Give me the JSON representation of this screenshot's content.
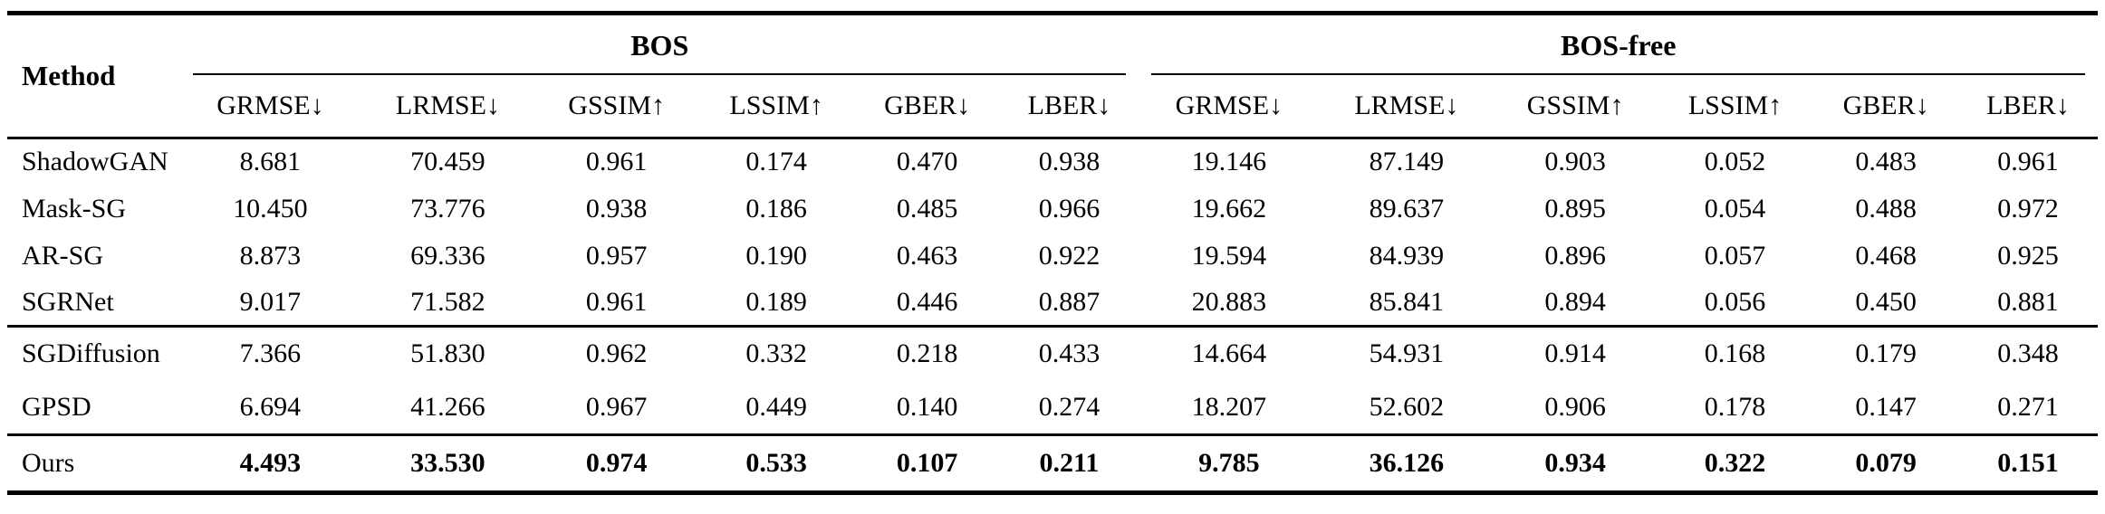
{
  "colors": {
    "background": "#ffffff",
    "text": "#000000",
    "rule": "#000000"
  },
  "table": {
    "method_header": "Method",
    "groups": [
      {
        "label": "BOS"
      },
      {
        "label": "BOS-free"
      }
    ],
    "metric_headers": [
      "GRMSE↓",
      "LRMSE↓",
      "GSSIM↑",
      "LSSIM↑",
      "GBER↓",
      "LBER↓"
    ],
    "sections": [
      {
        "rows": [
          {
            "method": "ShadowGAN",
            "values": [
              "8.681",
              "70.459",
              "0.961",
              "0.174",
              "0.470",
              "0.938",
              "19.146",
              "87.149",
              "0.903",
              "0.052",
              "0.483",
              "0.961"
            ]
          },
          {
            "method": "Mask-SG",
            "values": [
              "10.450",
              "73.776",
              "0.938",
              "0.186",
              "0.485",
              "0.966",
              "19.662",
              "89.637",
              "0.895",
              "0.054",
              "0.488",
              "0.972"
            ]
          },
          {
            "method": "AR-SG",
            "values": [
              "8.873",
              "69.336",
              "0.957",
              "0.190",
              "0.463",
              "0.922",
              "19.594",
              "84.939",
              "0.896",
              "0.057",
              "0.468",
              "0.925"
            ]
          },
          {
            "method": "SGRNet",
            "values": [
              "9.017",
              "71.582",
              "0.961",
              "0.189",
              "0.446",
              "0.887",
              "20.883",
              "85.841",
              "0.894",
              "0.056",
              "0.450",
              "0.881"
            ]
          }
        ]
      },
      {
        "rows": [
          {
            "method": "SGDiffusion",
            "values": [
              "7.366",
              "51.830",
              "0.962",
              "0.332",
              "0.218",
              "0.433",
              "14.664",
              "54.931",
              "0.914",
              "0.168",
              "0.179",
              "0.348"
            ]
          },
          {
            "method": "GPSD",
            "values": [
              "6.694",
              "41.266",
              "0.967",
              "0.449",
              "0.140",
              "0.274",
              "18.207",
              "52.602",
              "0.906",
              "0.178",
              "0.147",
              "0.271"
            ]
          }
        ]
      },
      {
        "emphasis": "bold-values",
        "rows": [
          {
            "method": "Ours",
            "values": [
              "4.493",
              "33.530",
              "0.974",
              "0.533",
              "0.107",
              "0.211",
              "9.785",
              "36.126",
              "0.934",
              "0.322",
              "0.079",
              "0.151"
            ]
          }
        ]
      }
    ]
  }
}
